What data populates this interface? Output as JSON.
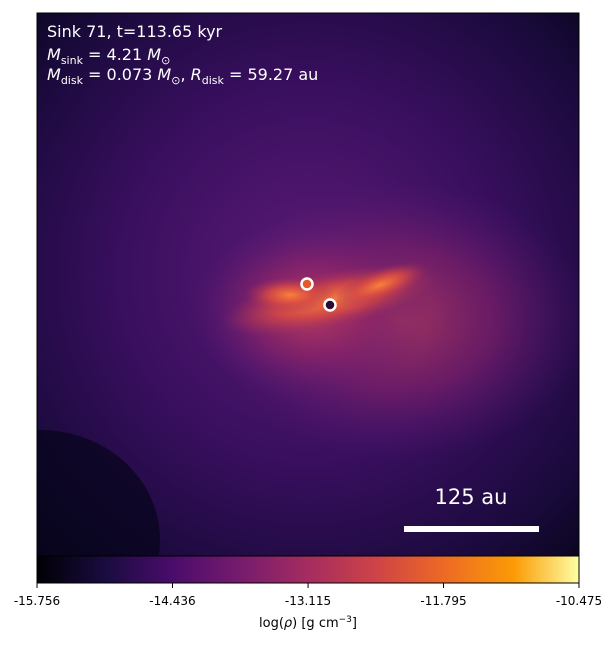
{
  "chart_data": {
    "type": "density-map",
    "title": "Sink 71, t=113.65 kyr",
    "sink_mass": [
      "M",
      "sink",
      " = 4.21 ",
      "M",
      "⊙"
    ],
    "disk_info": [
      "M",
      "disk",
      " = 0.073 ",
      "M",
      "⊙",
      ", ",
      "R",
      "disk",
      " = 59.27 au"
    ],
    "scale_bar_label": "125 au",
    "colorbar": {
      "label": [
        "log(",
        "ρ",
        ") [g cm",
        "−3",
        "]"
      ],
      "colormap": "inferno",
      "xlim": [
        -15.756,
        -10.475
      ],
      "xticks": [
        -15.756,
        -14.436,
        -13.115,
        -11.795,
        -10.475
      ]
    }
  }
}
